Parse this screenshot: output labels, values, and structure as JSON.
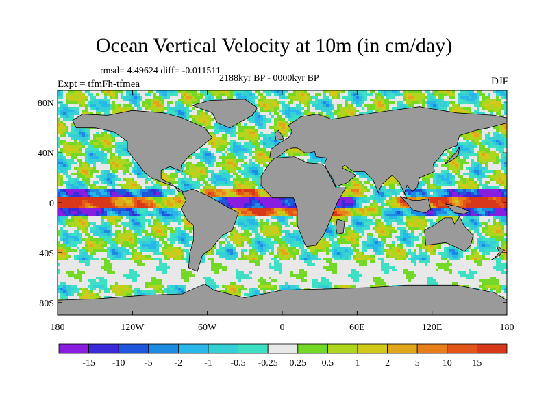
{
  "header": {
    "title": "Ocean Vertical Velocity at 10m (in cm/day)",
    "stats": "rmsd= 4.49624 diff= -0.011511",
    "period": "2188kyr BP - 0000kyr BP",
    "experiment": "Expt = tfmFh-tfmea",
    "season": "DJF"
  },
  "chart_data": {
    "type": "heatmap",
    "title": "Ocean Vertical Velocity at 10m (in cm/day)",
    "subtitle": "2188kyr BP - 0000kyr BP",
    "x_ticks": [
      "180",
      "120W",
      "60W",
      "0",
      "60E",
      "120E",
      "180"
    ],
    "x_tick_values": [
      -180,
      -120,
      -60,
      0,
      60,
      120,
      180
    ],
    "y_ticks": [
      "80N",
      "40N",
      "0",
      "40S",
      "80S"
    ],
    "y_tick_values": [
      80,
      40,
      0,
      -40,
      -80
    ],
    "xlim": [
      -180,
      180
    ],
    "ylim": [
      -90,
      90
    ],
    "land_color": "#9a9a9a",
    "colorbar": {
      "labels": [
        "-15",
        "-10",
        "-5",
        "-2",
        "-1",
        "-0.5",
        "-0.25",
        "0.25",
        "0.5",
        "1",
        "2",
        "5",
        "10",
        "15"
      ],
      "colors": [
        "#8a1ee0",
        "#3a2ad8",
        "#1f56dc",
        "#1e8ae0",
        "#29b6e8",
        "#35d0d6",
        "#3ee0c4",
        "#e8e8e8",
        "#74d826",
        "#aed61e",
        "#d2c81a",
        "#e0a61c",
        "#e67e1a",
        "#e2561a",
        "#d8381a"
      ]
    }
  }
}
